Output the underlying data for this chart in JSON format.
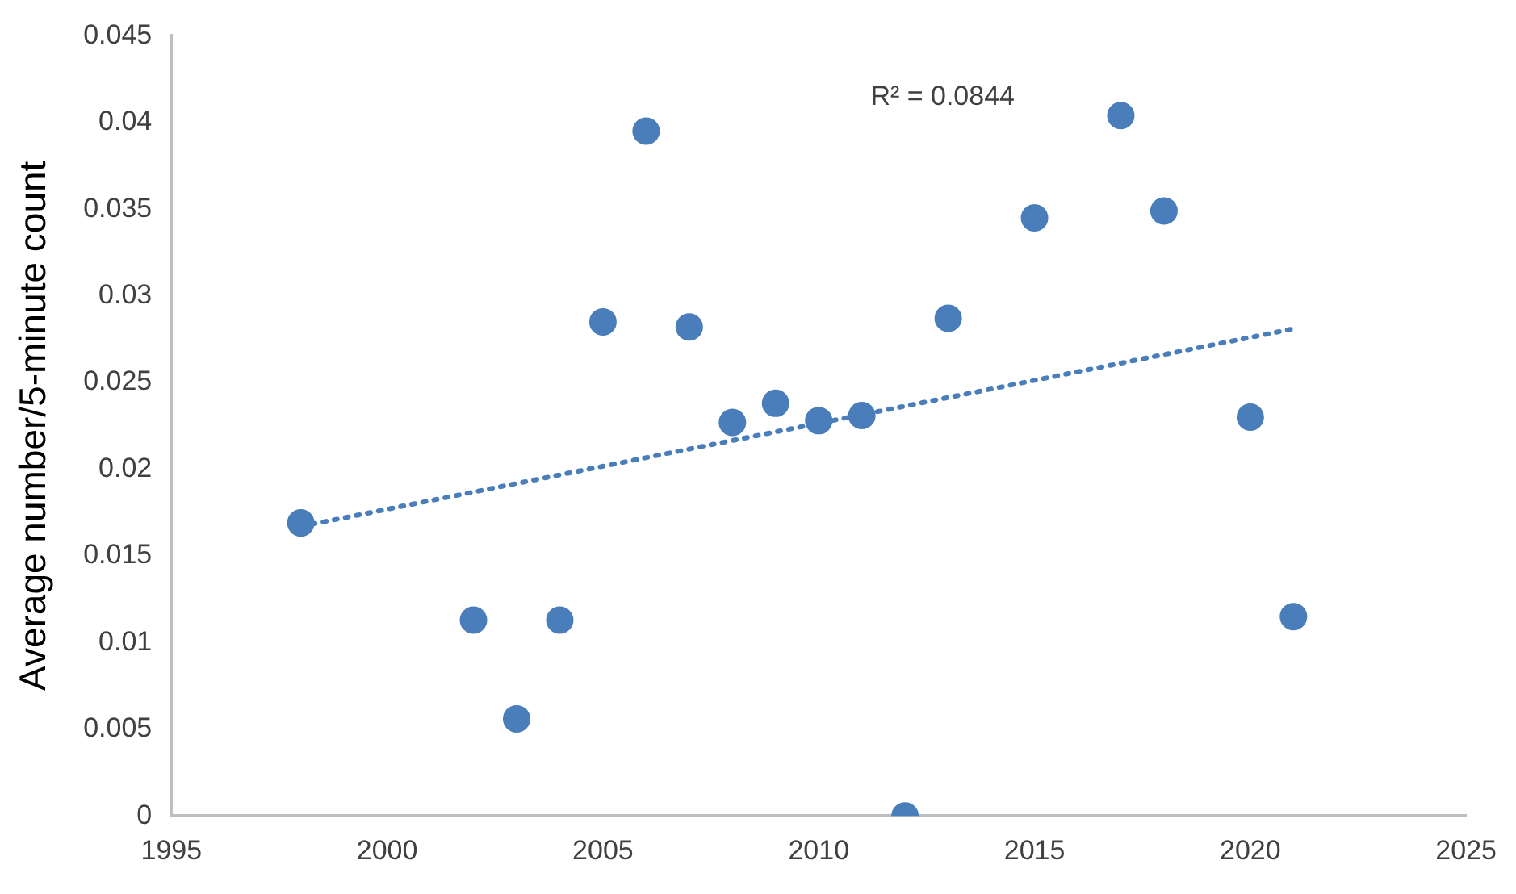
{
  "chart_data": {
    "type": "scatter",
    "ylabel": "Average number/5-minute count",
    "annotations": [
      "R² = 0.0844"
    ],
    "x": [
      1998,
      2002,
      2003,
      2004,
      2005,
      2006,
      2007,
      2008,
      2009,
      2010,
      2011,
      2012,
      2013,
      2015,
      2017,
      2018,
      2020,
      2021
    ],
    "series": [
      {
        "color": "#4a7ebb",
        "marker": "circle",
        "values": [
          0.0169,
          0.0113,
          0.0056,
          0.0113,
          0.0285,
          0.0395,
          0.0282,
          0.0227,
          0.0238,
          0.0228,
          0.0231,
          0,
          0.0287,
          0.0345,
          0.0404,
          0.0349,
          0.023,
          0.0115
        ]
      },
      {
        "type": "line",
        "color": "#4a7ebb",
        "line_style": "dotted",
        "marker": "none",
        "x": [
          1998,
          2021
        ],
        "values": [
          0.0167,
          0.0281
        ]
      }
    ],
    "xlim": [
      1995,
      2025
    ],
    "xticks": [
      1995,
      2000,
      2005,
      2010,
      2015,
      2020,
      2025
    ],
    "ylim": [
      0,
      0.045
    ],
    "yticks": [
      0,
      0.005,
      0.01,
      0.015,
      0.02,
      0.025,
      0.03,
      0.035,
      0.04,
      0.045
    ],
    "grid": false,
    "legend": false
  }
}
